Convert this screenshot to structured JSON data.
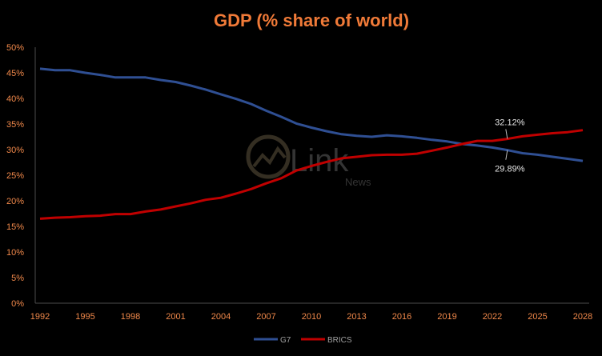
{
  "chart_data": {
    "type": "line",
    "title": "GDP (% share of world)",
    "xlabel": "",
    "ylabel": "",
    "x": [
      1992,
      1993,
      1994,
      1995,
      1996,
      1997,
      1998,
      1999,
      2000,
      2001,
      2002,
      2003,
      2004,
      2005,
      2006,
      2007,
      2008,
      2009,
      2010,
      2011,
      2012,
      2013,
      2014,
      2015,
      2016,
      2017,
      2018,
      2019,
      2020,
      2021,
      2022,
      2023,
      2024,
      2025,
      2026,
      2027,
      2028
    ],
    "x_ticks": [
      1992,
      1995,
      1998,
      2001,
      2004,
      2007,
      2010,
      2013,
      2016,
      2019,
      2022,
      2025,
      2028
    ],
    "y_ticks": [
      "0%",
      "5%",
      "10%",
      "15%",
      "20%",
      "25%",
      "30%",
      "35%",
      "40%",
      "45%",
      "50%"
    ],
    "ylim": [
      0,
      50
    ],
    "series": [
      {
        "name": "G7",
        "color": "#2f4f93",
        "values": [
          45.8,
          45.5,
          45.5,
          45.0,
          44.6,
          44.1,
          44.1,
          44.1,
          43.6,
          43.2,
          42.5,
          41.7,
          40.8,
          39.9,
          38.9,
          37.6,
          36.4,
          35.1,
          34.3,
          33.6,
          33.0,
          32.7,
          32.5,
          32.8,
          32.6,
          32.3,
          31.9,
          31.6,
          31.1,
          30.8,
          30.4,
          29.9,
          29.3,
          29.0,
          28.6,
          28.2,
          27.8
        ]
      },
      {
        "name": "BRICS",
        "color": "#c00000",
        "values": [
          16.5,
          16.7,
          16.8,
          17.0,
          17.1,
          17.4,
          17.4,
          17.9,
          18.3,
          18.9,
          19.5,
          20.2,
          20.6,
          21.4,
          22.3,
          23.4,
          24.4,
          25.9,
          26.8,
          27.6,
          28.3,
          28.6,
          28.9,
          29.0,
          29.0,
          29.2,
          29.8,
          30.4,
          31.1,
          31.7,
          31.7,
          32.1,
          32.6,
          32.9,
          33.2,
          33.4,
          33.8
        ]
      }
    ],
    "annotations": [
      {
        "text": "32.12%",
        "series": "BRICS",
        "x": 2023,
        "y": 32.12
      },
      {
        "text": "29.89%",
        "series": "G7",
        "x": 2023,
        "y": 29.89
      }
    ],
    "legend": {
      "position": "bottom-center"
    },
    "grid": false
  },
  "watermark": {
    "text": "Link",
    "subtext": "News"
  }
}
